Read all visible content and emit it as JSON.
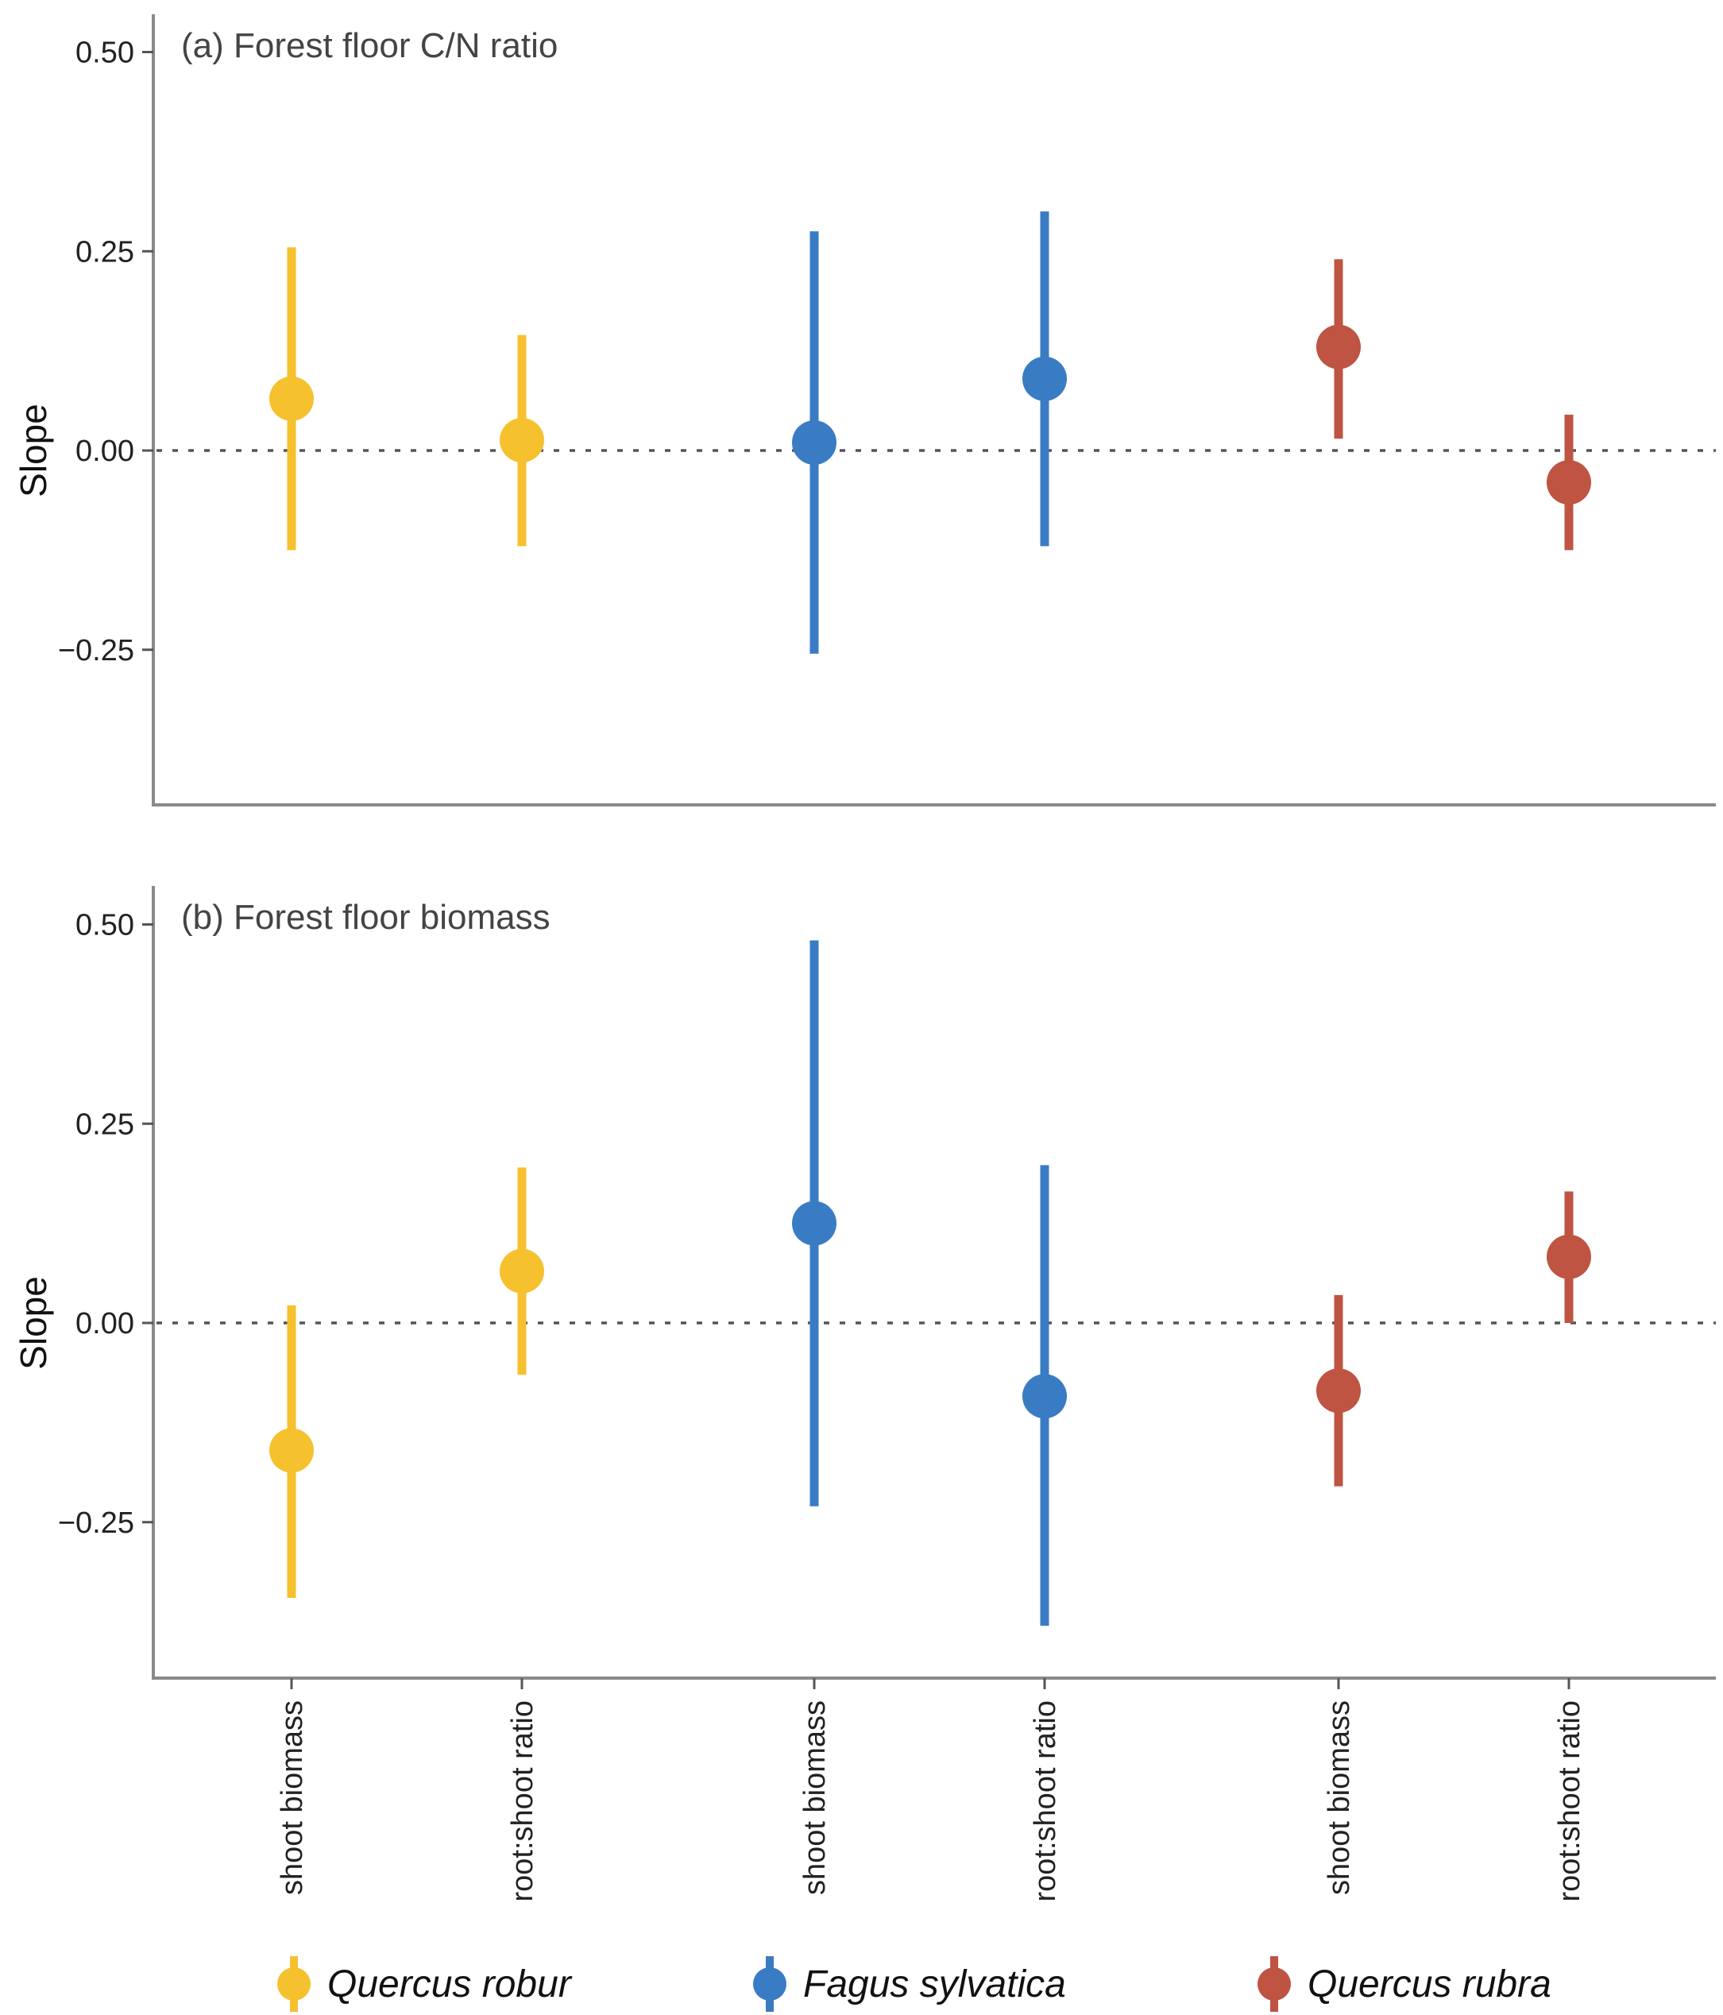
{
  "chart_data": [
    {
      "type": "pointrange",
      "title": "(a) Forest floor C/N ratio",
      "ylabel": "Slope",
      "ylim": [
        -0.45,
        0.53
      ],
      "yticks": [
        0.5,
        0.25,
        0.0,
        -0.25
      ],
      "ytick_labels": [
        "0.50",
        "0.25",
        "0.00",
        "−0.25"
      ],
      "reference_line": 0.0,
      "categories": [
        "shoot biomass",
        "root:shoot ratio",
        "shoot biomass",
        "root:shoot ratio",
        "shoot biomass",
        "root:shoot ratio"
      ],
      "points": [
        {
          "species": "Quercus robur",
          "category": "shoot biomass",
          "estimate": 0.065,
          "lower": -0.125,
          "upper": 0.255
        },
        {
          "species": "Quercus robur",
          "category": "root:shoot ratio",
          "estimate": 0.013,
          "lower": -0.12,
          "upper": 0.145
        },
        {
          "species": "Fagus sylvatica",
          "category": "shoot biomass",
          "estimate": 0.01,
          "lower": -0.255,
          "upper": 0.275
        },
        {
          "species": "Fagus sylvatica",
          "category": "root:shoot ratio",
          "estimate": 0.09,
          "lower": -0.12,
          "upper": 0.3
        },
        {
          "species": "Quercus rubra",
          "category": "shoot biomass",
          "estimate": 0.13,
          "lower": 0.015,
          "upper": 0.24
        },
        {
          "species": "Quercus rubra",
          "category": "root:shoot ratio",
          "estimate": -0.04,
          "lower": -0.125,
          "upper": 0.045
        }
      ]
    },
    {
      "type": "pointrange",
      "title": "(b) Forest floor biomass",
      "ylabel": "Slope",
      "ylim": [
        -0.45,
        0.53
      ],
      "yticks": [
        0.5,
        0.25,
        0.0,
        -0.25
      ],
      "ytick_labels": [
        "0.50",
        "0.25",
        "0.00",
        "−0.25"
      ],
      "reference_line": 0.0,
      "categories": [
        "shoot biomass",
        "root:shoot ratio",
        "shoot biomass",
        "root:shoot ratio",
        "shoot biomass",
        "root:shoot ratio"
      ],
      "points": [
        {
          "species": "Quercus robur",
          "category": "shoot biomass",
          "estimate": -0.16,
          "lower": -0.345,
          "upper": 0.022
        },
        {
          "species": "Quercus robur",
          "category": "root:shoot ratio",
          "estimate": 0.065,
          "lower": -0.065,
          "upper": 0.195
        },
        {
          "species": "Fagus sylvatica",
          "category": "shoot biomass",
          "estimate": 0.125,
          "lower": -0.23,
          "upper": 0.48
        },
        {
          "species": "Fagus sylvatica",
          "category": "root:shoot ratio",
          "estimate": -0.092,
          "lower": -0.38,
          "upper": 0.198
        },
        {
          "species": "Quercus rubra",
          "category": "shoot biomass",
          "estimate": -0.085,
          "lower": -0.205,
          "upper": 0.035
        },
        {
          "species": "Quercus rubra",
          "category": "root:shoot ratio",
          "estimate": 0.083,
          "lower": 0.0,
          "upper": 0.165
        }
      ]
    }
  ],
  "legend": {
    "position": "bottom",
    "entries": [
      {
        "label": "Quercus robur",
        "color": "#F5C12E"
      },
      {
        "label": "Fagus sylvatica",
        "color": "#3A7CC4"
      },
      {
        "label": "Quercus rubra",
        "color": "#BE5441"
      }
    ]
  }
}
